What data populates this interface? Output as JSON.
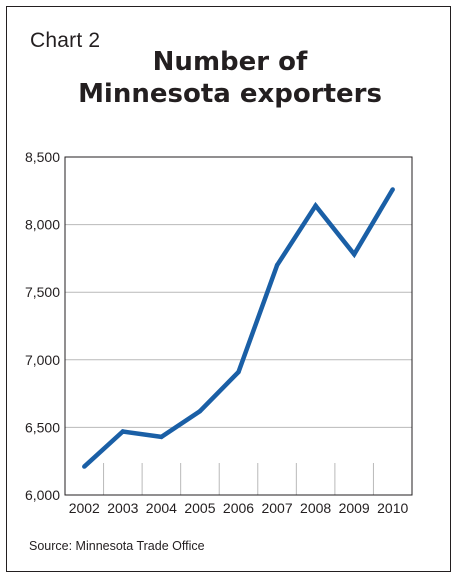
{
  "label": "Chart 2",
  "title_line1": "Number of",
  "title_line2": "Minnesota exporters",
  "source": "Source: Minnesota Trade Office",
  "colors": {
    "line": "#1a5fa6",
    "grid": "#b9b9b9",
    "frame": "#231f20"
  },
  "chart_data": {
    "type": "line",
    "title": "Number of Minnesota exporters",
    "x": [
      "2002",
      "2003",
      "2004",
      "2005",
      "2006",
      "2007",
      "2008",
      "2009",
      "2010"
    ],
    "series": [
      {
        "values": [
          6210,
          6470,
          6430,
          6620,
          6910,
          7700,
          8140,
          7780,
          8260
        ]
      }
    ],
    "ylim": [
      6000,
      8500
    ],
    "yticks": [
      "6,000",
      "6,500",
      "7,000",
      "7,500",
      "8,000",
      "8,500"
    ],
    "grid": "horizontal",
    "xlabel": "",
    "ylabel": ""
  }
}
